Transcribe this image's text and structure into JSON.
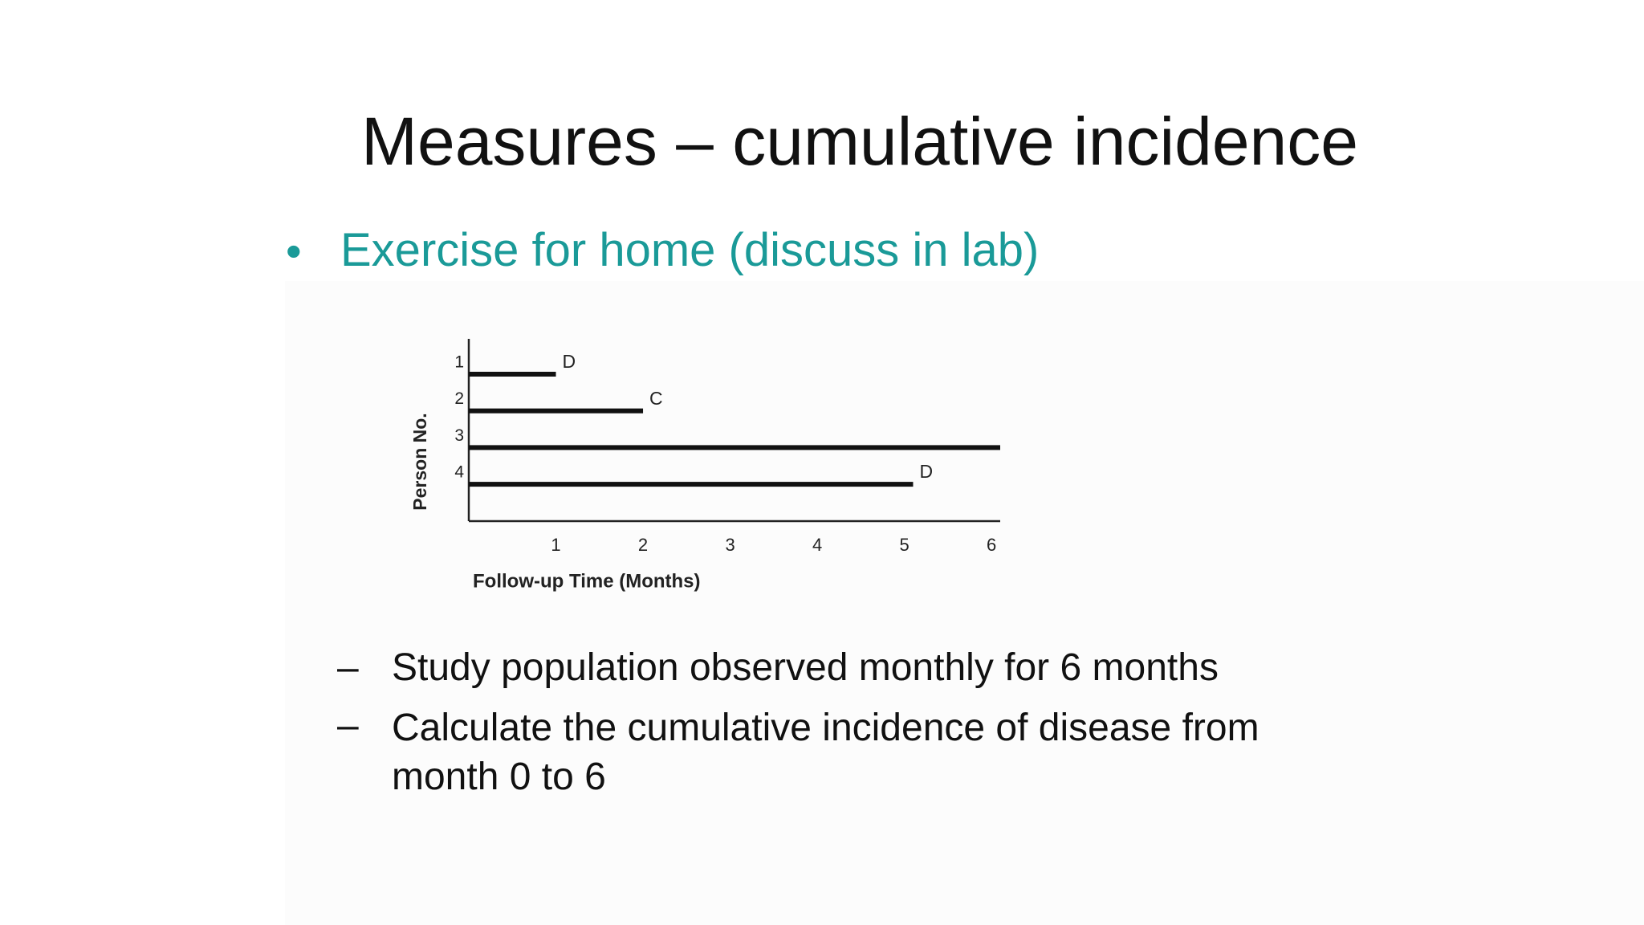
{
  "slide": {
    "title": "Measures – cumulative incidence",
    "bullet": "Exercise for home (discuss in lab)",
    "sub_bullets": [
      "Study population observed monthly for 6 months",
      "Calculate the cumulative incidence of disease from month 0 to 6"
    ]
  },
  "chart_data": {
    "type": "bar",
    "orientation": "horizontal",
    "color": "#111111",
    "categories": [
      "1",
      "2",
      "3",
      "4"
    ],
    "values": [
      1,
      2,
      6.1,
      5.1
    ],
    "annotations": [
      "D",
      "C",
      null,
      "D"
    ],
    "xlabel": "Follow-up Time (Months)",
    "ylabel": "Person No.",
    "xlim": [
      0,
      6.1
    ],
    "xticks": [
      1,
      2,
      3,
      4,
      5,
      6
    ],
    "grid": false
  }
}
